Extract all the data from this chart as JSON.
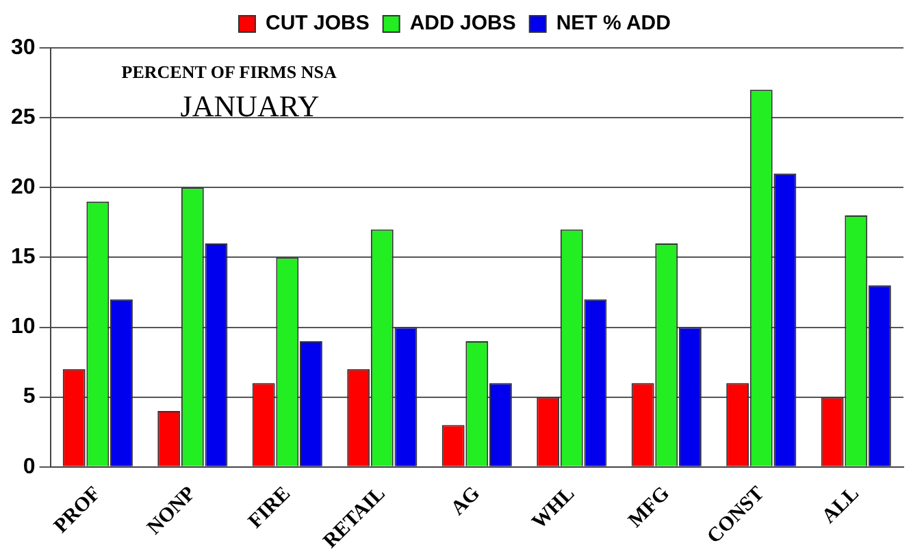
{
  "chart_data": {
    "type": "bar",
    "title": "PERCENT OF FIRMS NSA",
    "subtitle": "JANUARY",
    "categories": [
      "PROF",
      "NONP",
      "FIRE",
      "RETAIL",
      "AG",
      "WHL",
      "MFG",
      "CONST",
      "ALL"
    ],
    "series": [
      {
        "name": "CUT JOBS",
        "color": "#ff0000",
        "values": [
          7,
          4,
          6,
          7,
          3,
          5,
          6,
          6,
          5
        ]
      },
      {
        "name": "ADD JOBS",
        "color": "#22ee22",
        "values": [
          19,
          20,
          15,
          17,
          9,
          17,
          16,
          27,
          18
        ]
      },
      {
        "name": "NET % ADD",
        "color": "#0000ee",
        "values": [
          12,
          16,
          9,
          10,
          6,
          12,
          10,
          21,
          13
        ]
      }
    ],
    "ylim": [
      0,
      30
    ],
    "yticks": [
      0,
      5,
      10,
      15,
      20,
      25,
      30
    ],
    "grid": "y",
    "legend": "top"
  }
}
